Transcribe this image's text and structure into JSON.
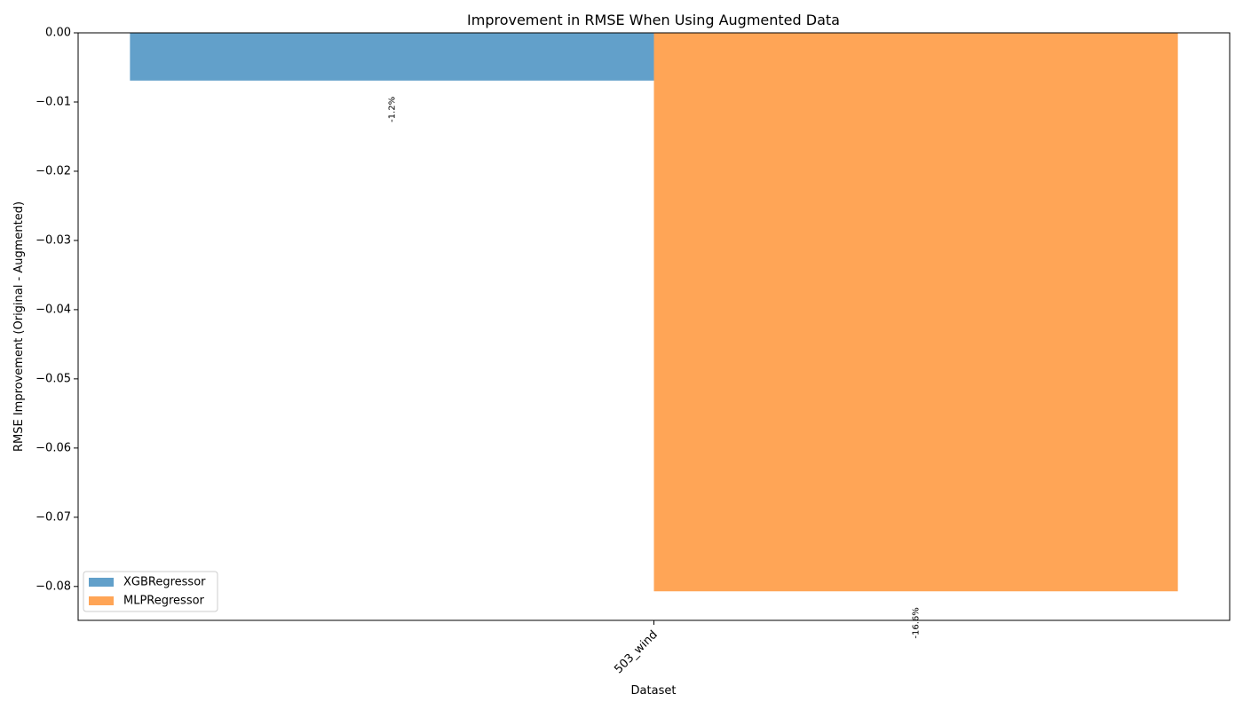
{
  "chart_data": {
    "type": "bar",
    "title": "Improvement in RMSE When Using Augmented Data",
    "xlabel": "Dataset",
    "ylabel": "RMSE Improvement (Original - Augmented)",
    "categories": [
      "503_wind"
    ],
    "series": [
      {
        "name": "XGBRegressor",
        "values": [
          -0.0069
        ],
        "labels": [
          "-1.2%"
        ],
        "color": "#1f77b4"
      },
      {
        "name": "MLPRegressor",
        "values": [
          -0.0807
        ],
        "labels": [
          "-16.6%"
        ],
        "color": "#ff7f0e"
      }
    ],
    "ylim": [
      -0.0849,
      0.0
    ],
    "yticks": [
      0.0,
      -0.01,
      -0.02,
      -0.03,
      -0.04,
      -0.05,
      -0.06,
      -0.07,
      -0.08
    ],
    "ytick_labels": [
      "0.00",
      "−0.01",
      "−0.02",
      "−0.03",
      "−0.04",
      "−0.05",
      "−0.06",
      "−0.07",
      "−0.08"
    ],
    "bar_alpha": 0.7,
    "grid": false,
    "legend_position": "lower-left"
  }
}
